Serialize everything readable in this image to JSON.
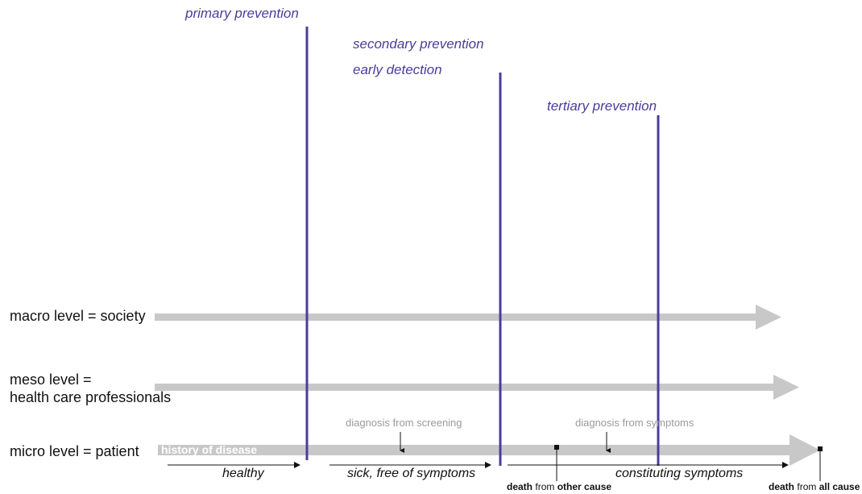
{
  "prevention": {
    "primary": "primary prevention",
    "secondary": "secondary prevention",
    "early": "early detection",
    "tertiary": "tertiary prevention"
  },
  "levels": {
    "macro": "macro level = society",
    "meso_line1": "meso level =",
    "meso_line2": "health care professionals",
    "micro": "micro level = patient"
  },
  "history": "history of disease",
  "diagnosis": {
    "screening": "diagnosis from screening",
    "symptoms": "diagnosis from symptoms"
  },
  "phases": {
    "healthy": "healthy",
    "sick_free": "sick, free of symptoms",
    "constituting": "constituting symptoms"
  },
  "deaths": {
    "other_bold": "death",
    "other_from": "from",
    "other_cause": "other cause",
    "all_bold": "death",
    "all_from": "from",
    "all_cause": "all cause"
  },
  "colors": {
    "prevention": "#4b3c9c",
    "arrow": "#c8c8c8",
    "text": "#111111"
  }
}
